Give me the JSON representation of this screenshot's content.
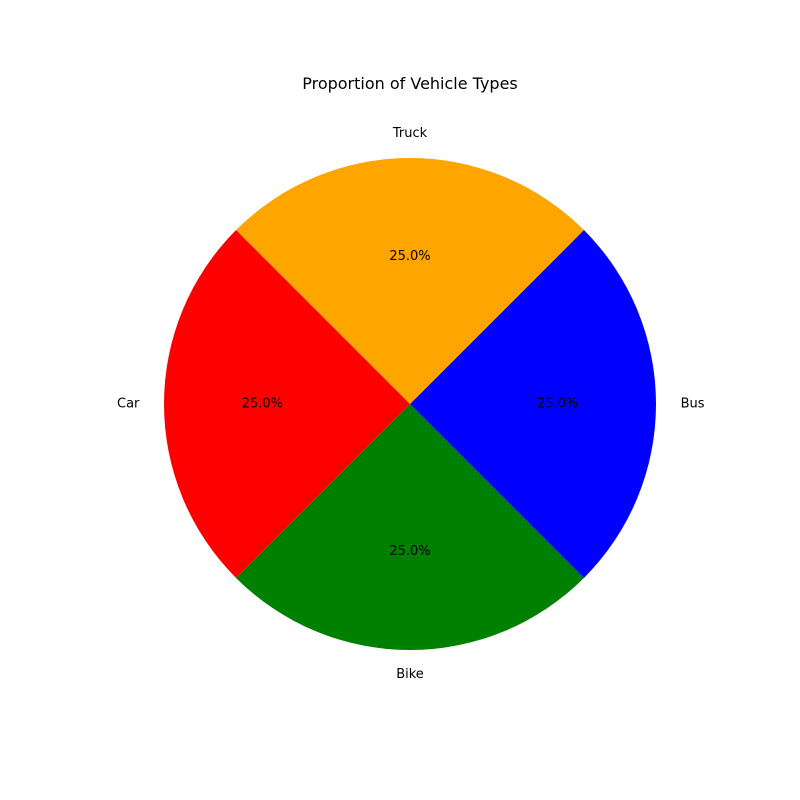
{
  "chart_data": {
    "type": "pie",
    "title": "Proportion of Vehicle Types",
    "categories": [
      "Car",
      "Bike",
      "Bus",
      "Truck"
    ],
    "values": [
      25,
      25,
      25,
      25
    ],
    "percent_labels": [
      "25.0%",
      "25.0%",
      "25.0%",
      "25.0%"
    ],
    "colors": [
      "#ff0000",
      "#008000",
      "#0000ff",
      "#ffa500"
    ],
    "start_angle_deg": 135,
    "direction": "counterclockwise",
    "legend": "none"
  }
}
